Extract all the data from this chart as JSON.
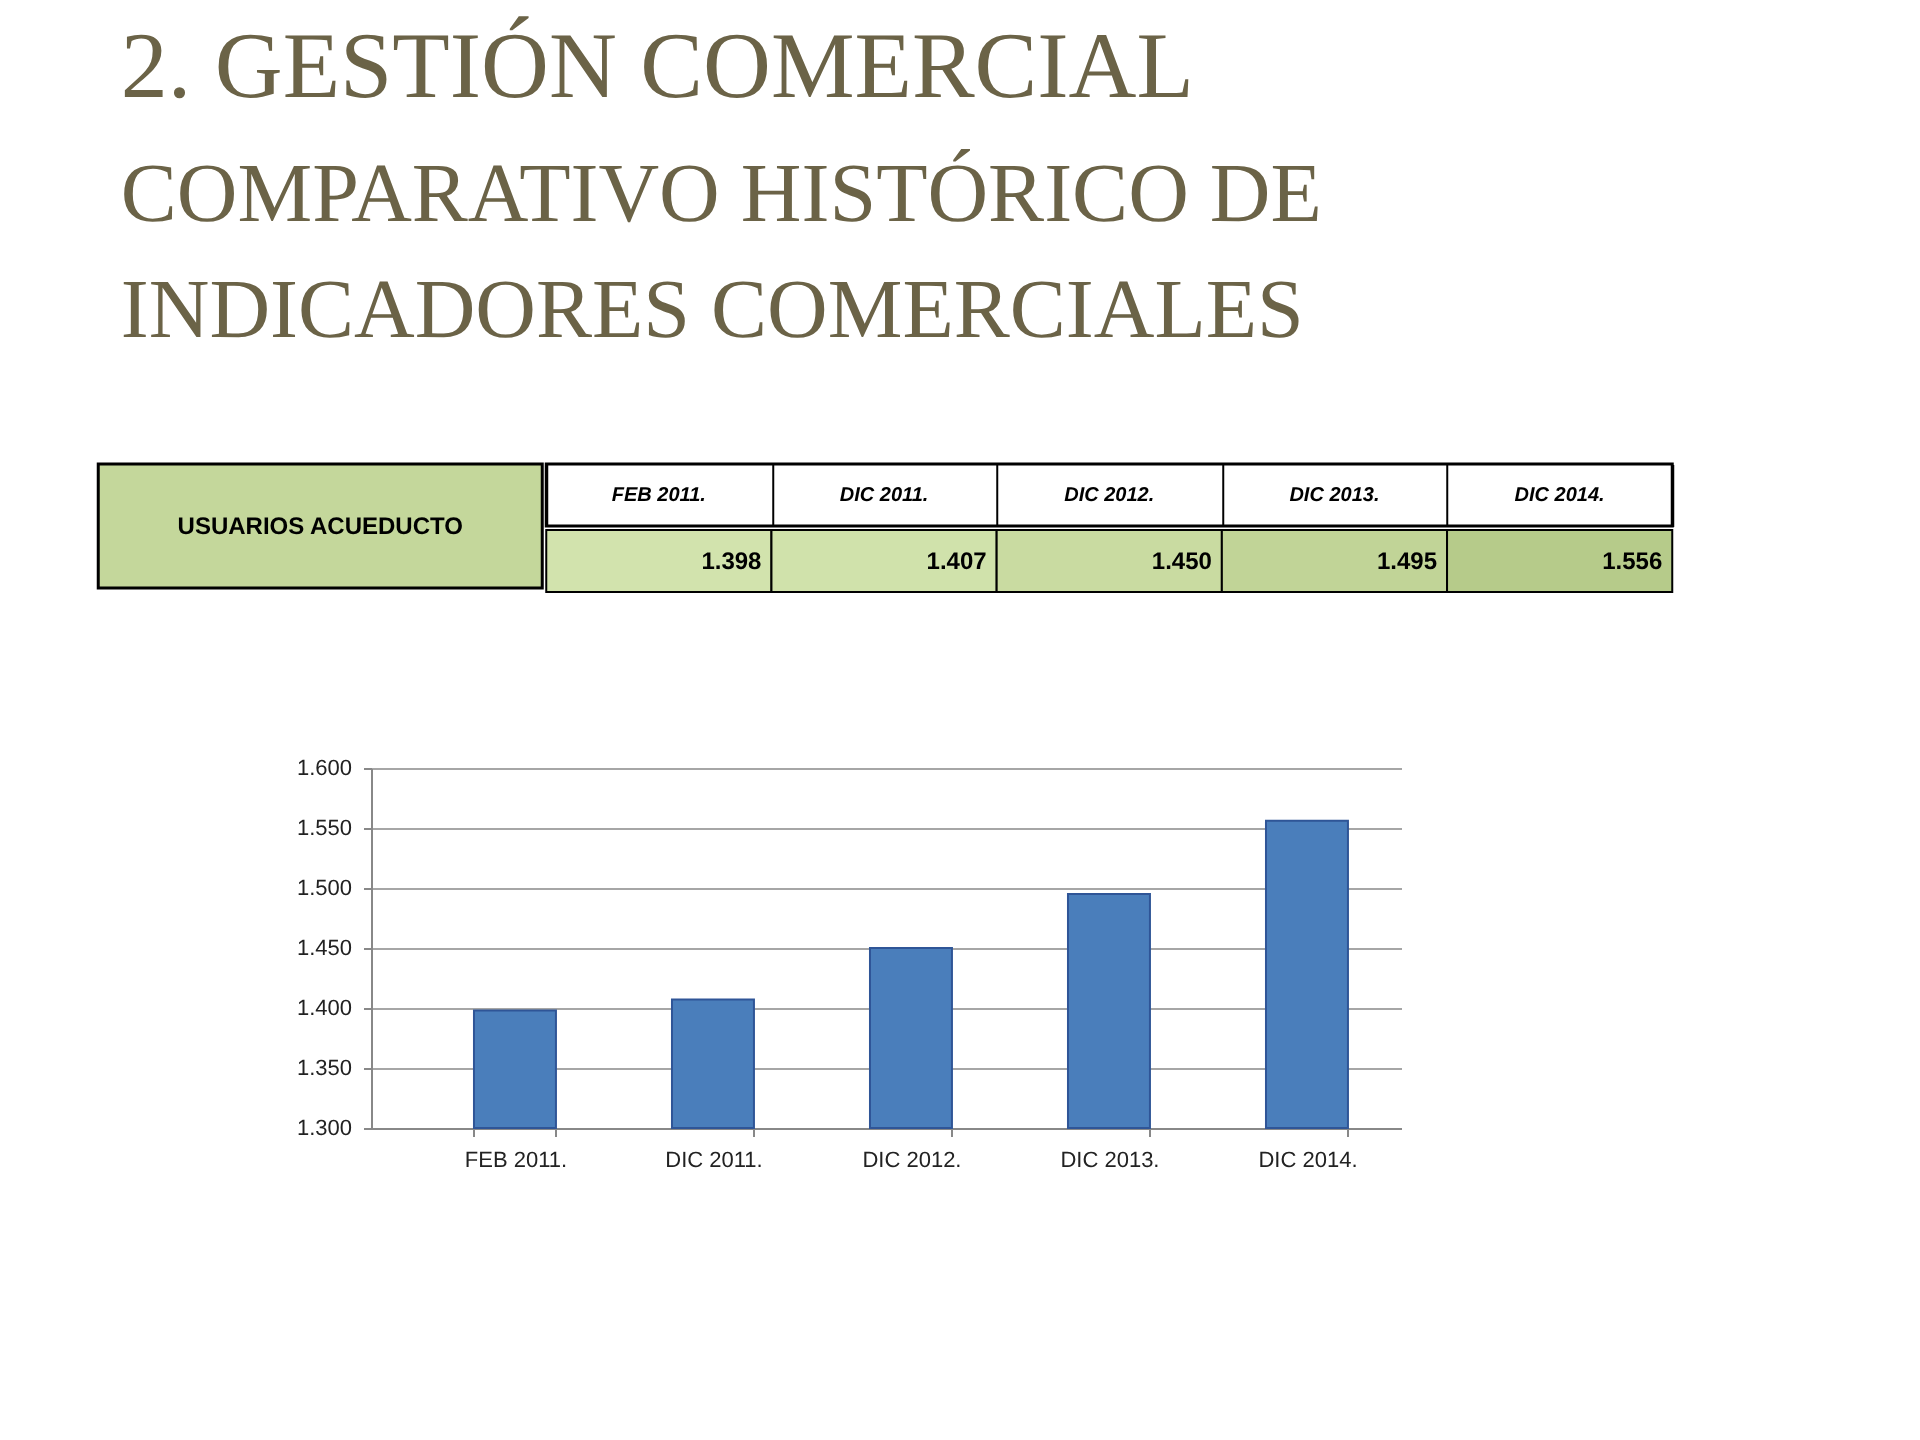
{
  "chart_data": [
    {
      "type": "heatmap",
      "title": "2. GESTIÓN COMERCIAL",
      "subtitle": "COMPARATIVO HISTÓRICO DE INDICADORES COMERCIALES",
      "categories": [
        "FEB 2011.",
        "DIC 2011.",
        "DIC 2012.",
        "DIC 2013.",
        "DIC 2014."
      ],
      "y_categories": [
        "USUARIOS ACUEDUCTO"
      ],
      "cells": [
        [
          1398,
          1407,
          1450,
          1495,
          1556
        ]
      ],
      "cell_labels": [
        [
          "1.398",
          "1.407",
          "1.450",
          "1.495",
          "1.556"
        ]
      ]
    },
    {
      "type": "bar",
      "categories": [
        "FEB 2011.",
        "DIC 2011.",
        "DIC 2012.",
        "DIC 2013.",
        "DIC 2014."
      ],
      "series": [
        {
          "color": "#4a7ebb",
          "values": [
            1398,
            1407,
            1450,
            1495,
            1556
          ]
        }
      ],
      "ylim": [
        1300,
        1600
      ],
      "yticks": [
        {
          "value": 1300,
          "label": "1.300"
        },
        {
          "value": 1350,
          "label": "1.350"
        },
        {
          "value": 1400,
          "label": "1.400"
        },
        {
          "value": 1450,
          "label": "1.450"
        },
        {
          "value": 1500,
          "label": "1.500"
        },
        {
          "value": 1550,
          "label": "1.550"
        },
        {
          "value": 1600,
          "label": "1.600"
        }
      ],
      "grid": "y"
    }
  ]
}
